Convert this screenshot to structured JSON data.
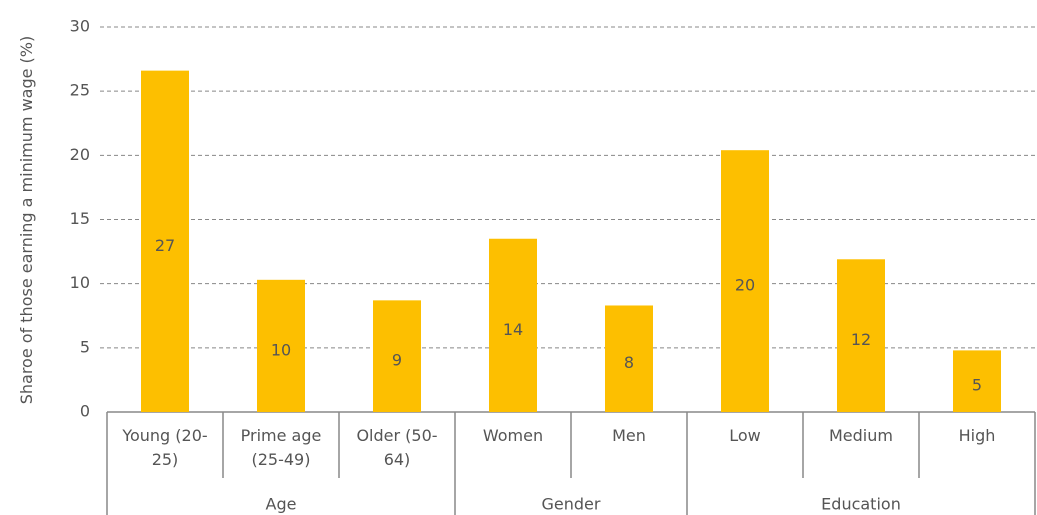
{
  "chart_data": {
    "type": "bar",
    "y_label": "Sharoe of those earning a minimum wage (%)",
    "color": "#fdbf00",
    "ylim": [
      0,
      30
    ],
    "yticks": [
      0,
      5,
      10,
      15,
      20,
      25,
      30
    ],
    "grid": true,
    "groups": [
      {
        "name": "Age",
        "categories": [
          "Young (20-25)",
          "Prime age (25-49)",
          "Older (50-64)"
        ],
        "values": [
          26.6,
          10.3,
          8.7
        ],
        "value_labels": [
          "27",
          "10",
          "9"
        ]
      },
      {
        "name": "Gender",
        "categories": [
          "Women",
          "Men"
        ],
        "values": [
          13.5,
          8.3
        ],
        "value_labels": [
          "14",
          "8"
        ]
      },
      {
        "name": "Education",
        "categories": [
          "Low",
          "Medium",
          "High"
        ],
        "values": [
          20.4,
          11.9,
          4.8
        ],
        "value_labels": [
          "20",
          "12",
          "5"
        ]
      }
    ]
  }
}
